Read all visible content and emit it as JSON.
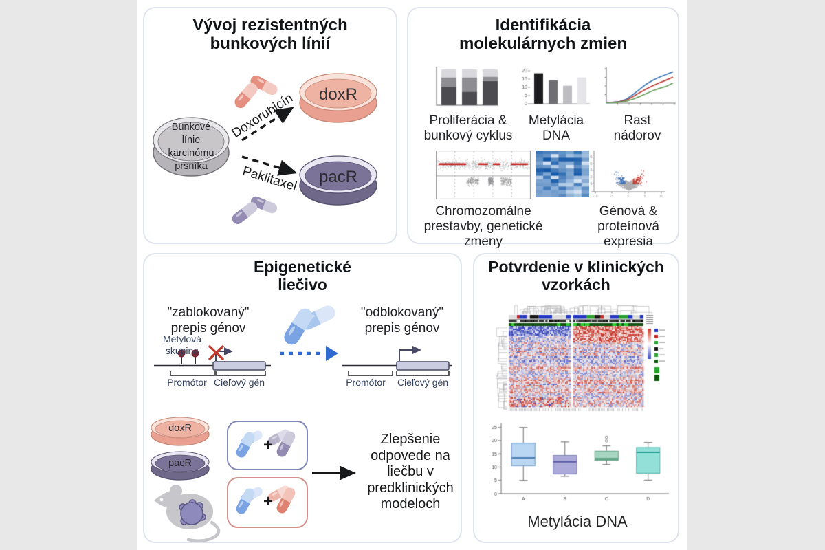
{
  "colors": {
    "outer_bg": "#e8e8e8",
    "stage_bg": "#ffffff",
    "panel_border": "#dfe3ec",
    "ink": "#111417",
    "arrow_ink": "#17181a",
    "arrow_blue": "#2e6ad1",
    "x_red": "#bf3a2b",
    "lollipop": "#7c2532",
    "gene_box": "#cacce0",
    "gene_stroke": "#474766",
    "gene_line": "#2c2c30",
    "bracket": "#3c3c40",
    "label_navy": "#33415e",
    "box1_border": "#8188b8",
    "box2_border": "#d2908a",
    "mouse_gray": "#c7c6ca",
    "tumor_fill": "#8e8abc",
    "tumor_stroke": "#5b5685",
    "dish_gray_body": "#b6b4b8",
    "dish_gray_top": "#e9e8ea",
    "dish_gray_inner": "#c8c6c9",
    "dish_gray_stroke": "#737176",
    "dish_dox_body": "#e9a090",
    "dish_dox_top": "#f8e2d9",
    "dish_dox_inner": "#efb3a3",
    "dish_dox_stroke": "#c98876",
    "dish_pac_body": "#6f6889",
    "dish_pac_top": "#e9e7f1",
    "dish_pac_inner": "#7b7498",
    "dish_pac_stroke": "#575170",
    "pill_pink": [
      "#e58f81",
      "#f3c9c2"
    ],
    "pill_purple": [
      "#948cb2",
      "#cdcadb"
    ],
    "pill_purple_light": [
      "#b9b4cc",
      "#dddbe8"
    ],
    "pill_blue": [
      "#79a3e2",
      "#c4d9f4"
    ],
    "pill_blue_light": [
      "#a9c6ec",
      "#dbe7f8"
    ],
    "pill_red": [
      "#df8270",
      "#f3c3ba"
    ],
    "pill_red_light": [
      "#eeb5ab",
      "#f7d8d2"
    ]
  },
  "panels": {
    "develop": {
      "title": "Vývoj rezistentných\nbunkových línií",
      "source_label": "Bunkové\nlínie\nkarcinómu\nprsníka",
      "drug1": "Doxorubicín",
      "drug2": "Paklitaxel",
      "dox_label": "doxR",
      "pac_label": "pacR"
    },
    "identify": {
      "title": "Identifikácia\nmolekulárnych zmien",
      "captions": [
        "Proliferácia &\nbunkový cyklus",
        "Metylácia\nDNA",
        "Rast\nnádorov",
        "Chromozomálne\nprestavby, genetické\nzmeny",
        "Génová &\nproteínová\nexpresia"
      ]
    },
    "epigenetic": {
      "title": "Epigenetické\nliečivo",
      "blocked": "\"zablokovaný\"\nprepis génov",
      "unblocked": "\"odblokovaný\"\nprepis génov",
      "methyl": "Metylová\nskupina",
      "promoter": "Promótor",
      "gene": "Cieľový gén",
      "dox": "doxR",
      "pac": "pacR",
      "plus": "+",
      "outcome": "Zlepšenie\nodpovede na\nliečbu v\npredklinických\nmodeloch"
    },
    "clinical": {
      "title": "Potvrdenie v klinických\nvzorkách",
      "caption": "Metylácia DNA"
    }
  },
  "chart_data": [
    {
      "id": "proliferation-stacked-bar",
      "type": "bar",
      "variant": "stacked",
      "categories": [
        "",
        "",
        ""
      ],
      "series": [
        {
          "color": "#4b4b50",
          "values": [
            52,
            38,
            68
          ]
        },
        {
          "color": "#8d8d92",
          "values": [
            26,
            40,
            12
          ]
        },
        {
          "color": "#d9d9dd",
          "values": [
            22,
            22,
            20
          ]
        }
      ],
      "ylim": [
        0,
        100
      ]
    },
    {
      "id": "methylation-bar",
      "type": "bar",
      "values": [
        18.5,
        14.3,
        11,
        16
      ],
      "colors": [
        "#1d1d1f",
        "#6e6e73",
        "#bdbdc2",
        "#e6e6e9"
      ],
      "ylim": [
        0,
        20
      ],
      "yticks": [
        0,
        5,
        10,
        15,
        20
      ]
    },
    {
      "id": "tumor-growth-lines",
      "type": "line",
      "series": [
        {
          "color": "#3a78b5",
          "values": [
            0.2,
            0.3,
            0.5,
            1.2,
            2.6,
            4.2,
            5.8,
            7.0,
            7.9,
            8.7,
            9.5
          ]
        },
        {
          "color": "#bf3c33",
          "values": [
            0.2,
            0.25,
            0.4,
            0.9,
            2.0,
            3.2,
            4.3,
            5.3,
            6.2,
            7.0,
            7.9
          ]
        },
        {
          "color": "#69a35e",
          "values": [
            0.15,
            0.2,
            0.3,
            0.6,
            1.2,
            2.0,
            2.9,
            3.8,
            4.5,
            5.1,
            6.1
          ]
        }
      ],
      "ylim": [
        0,
        10
      ]
    },
    {
      "id": "cnv-scatter",
      "type": "scatter",
      "variant": "cnv",
      "seed": 11,
      "dot_color": "#8e8e92",
      "segment_color": "#c52727",
      "red_segments": [
        [
          0.03,
          0.32
        ],
        [
          0.45,
          0.55
        ],
        [
          0.6,
          0.68
        ],
        [
          0.79,
          0.97
        ]
      ],
      "dips": [
        [
          0.32,
          0.45
        ],
        [
          0.55,
          0.6
        ],
        [
          0.68,
          0.79
        ]
      ]
    },
    {
      "id": "expression-heatmap",
      "type": "heatmap",
      "seed": 5,
      "rows": 13,
      "cols": 7,
      "color_low": "#ddeaf7",
      "color_high": "#1257a6"
    },
    {
      "id": "volcano-plot",
      "type": "scatter",
      "variant": "volcano",
      "seed": 9,
      "n_points": 650,
      "color_up": "#c23b2e",
      "color_down": "#3b6fb5",
      "color_ns": "#ababaf",
      "xticks": [
        -10,
        -5,
        0,
        5,
        10
      ],
      "yticks": [
        5,
        10,
        15,
        20,
        25
      ]
    },
    {
      "id": "clinical-methylation-heatmap",
      "type": "heatmap",
      "variant": "clustered",
      "seed": 13,
      "rows": 59,
      "cols": 98,
      "split_frac": 0.47,
      "color_pos": "#c8372b",
      "color_neg": "#3947b8",
      "ann_palette": [
        "#2336c4",
        "#c52727",
        "#27a32e",
        "#151515",
        "#dddddd"
      ],
      "ann2_base": "#3a3a3a",
      "ann3_base": "#165316",
      "ann3_mark": "#2ecc2e",
      "legend_swatches": [
        "#2336c4",
        "#c52727",
        "#27a32e",
        "#151515",
        "#27a32e",
        "#0c570c"
      ]
    },
    {
      "id": "methylation-boxplot",
      "type": "boxplot",
      "title": "Metylácia DNA",
      "categories": [
        "A",
        "B",
        "C",
        "D"
      ],
      "yticks": [
        0,
        5,
        10,
        15,
        20,
        25
      ],
      "ylim": [
        0,
        27
      ],
      "boxes": [
        {
          "whislo": 5,
          "q1": 10.5,
          "med": 13.5,
          "q3": 19,
          "whishi": 25,
          "fliers": [],
          "fill": "#b9d6f2",
          "stroke": "#7fa9d2",
          "median_color": "#4a7fb5"
        },
        {
          "whislo": 6.5,
          "q1": 7.4,
          "med": 12,
          "q3": 14.4,
          "whishi": 19.5,
          "fliers": [],
          "fill": "#abaad9",
          "stroke": "#8787bd",
          "median_color": "#5a5aa6"
        },
        {
          "whislo": 11,
          "q1": 12.6,
          "med": 13.1,
          "q3": 16,
          "whishi": 18,
          "fliers": [
            19.9,
            21.3
          ],
          "fill": "#a6d6c2",
          "stroke": "#6fab90",
          "median_color": "#2f7d5d"
        },
        {
          "whislo": 5.1,
          "q1": 7.7,
          "med": 15.6,
          "q3": 17.4,
          "whishi": 19.3,
          "fliers": [],
          "fill": "#92e0d8",
          "stroke": "#5cbcb2",
          "median_color": "#2a9d93"
        }
      ]
    }
  ]
}
